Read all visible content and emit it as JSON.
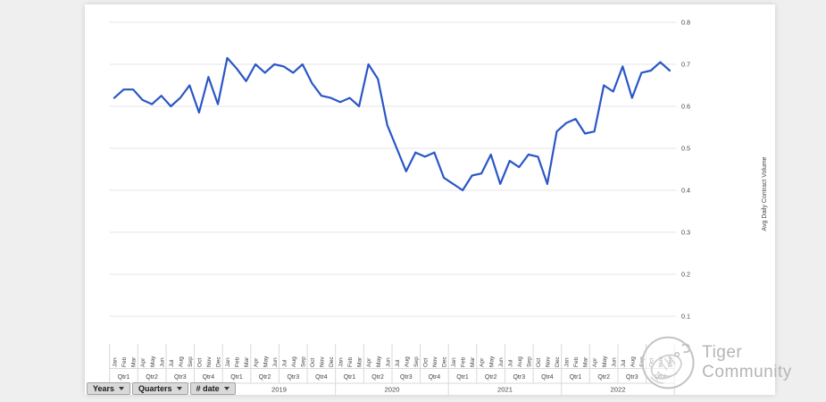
{
  "watermark": {
    "text": "Tiger Community",
    "logo": "tiger-sketch-circle-icon"
  },
  "filter_buttons": [
    {
      "label": "Years"
    },
    {
      "label": "Quarters"
    },
    {
      "label": "# date"
    }
  ],
  "chart_data": {
    "type": "line",
    "title": "",
    "xlabel": "",
    "ylabel": "Avg Daily Contract Volume",
    "legend": "none",
    "grid": true,
    "y_axis": {
      "side": "right",
      "min": 0.0,
      "max": 0.8,
      "ticks": [
        0.1,
        0.2,
        0.3,
        0.4,
        0.5,
        0.6,
        0.7,
        0.8
      ]
    },
    "colors": {
      "line": "#2a56c6",
      "gridline": "#e4e4e4",
      "divider": "#d9d9d9",
      "axis_text": "#444444",
      "watermark": "#b5b5b5"
    },
    "x_axis": {
      "years": [
        {
          "label": "",
          "quarters": [
            "Qtr1",
            "Qtr2",
            "Qtr3",
            "Qtr4"
          ],
          "months": [
            "Jan",
            "Feb",
            "Mar",
            "Apr",
            "May",
            "Jun",
            "Jul",
            "Aug",
            "Sep",
            "Oct",
            "Nov",
            "Dec"
          ]
        },
        {
          "label": "2019",
          "quarters": [
            "Qtr1",
            "Qtr2",
            "Qtr3",
            "Qtr4"
          ],
          "months": [
            "Jan",
            "Feb",
            "Mar",
            "Apr",
            "May",
            "Jun",
            "Jul",
            "Aug",
            "Sep",
            "Oct",
            "Nov",
            "Dec"
          ]
        },
        {
          "label": "2020",
          "quarters": [
            "Qtr1",
            "Qtr2",
            "Qtr3",
            "Qtr4"
          ],
          "months": [
            "Jan",
            "Feb",
            "Mar",
            "Apr",
            "May",
            "Jun",
            "Jul",
            "Aug",
            "Sep",
            "Oct",
            "Nov",
            "Dec"
          ]
        },
        {
          "label": "2021",
          "quarters": [
            "Qtr1",
            "Qtr2",
            "Qtr3",
            "Qtr4"
          ],
          "months": [
            "Jan",
            "Feb",
            "Mar",
            "Apr",
            "May",
            "Jun",
            "Jul",
            "Aug",
            "Sep",
            "Oct",
            "Nov",
            "Dec"
          ]
        },
        {
          "label": "2022",
          "quarters": [
            "Qtr1",
            "Qtr2",
            "Qtr3",
            "Qtr4"
          ],
          "months": [
            "Jan",
            "Feb",
            "Mar",
            "Apr",
            "May",
            "Jun",
            "Jul",
            "Aug",
            "Sep",
            "Oct",
            "Nov",
            "Dec"
          ]
        }
      ]
    },
    "series": [
      {
        "name": "Avg Daily Contract Volume",
        "values": [
          0.62,
          0.64,
          0.64,
          0.615,
          0.605,
          0.625,
          0.6,
          0.62,
          0.65,
          0.585,
          0.67,
          0.605,
          0.715,
          0.69,
          0.66,
          0.7,
          0.68,
          0.7,
          0.695,
          0.68,
          0.7,
          0.655,
          0.625,
          0.62,
          0.61,
          0.62,
          0.6,
          0.7,
          0.665,
          0.555,
          0.5,
          0.445,
          0.49,
          0.48,
          0.49,
          0.43,
          0.415,
          0.4,
          0.435,
          0.44,
          0.485,
          0.415,
          0.47,
          0.455,
          0.485,
          0.48,
          0.415,
          0.54,
          0.56,
          0.57,
          0.535,
          0.54,
          0.65,
          0.635,
          0.695,
          0.62,
          0.68,
          0.685,
          0.705,
          0.685
        ]
      }
    ]
  }
}
